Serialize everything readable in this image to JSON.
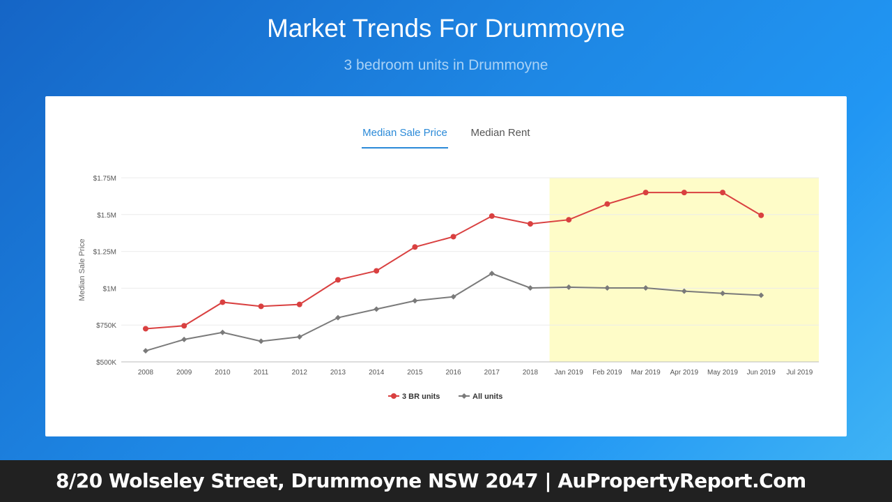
{
  "header": {
    "title": "Market Trends For Drummoyne",
    "subtitle": "3 bedroom units in Drummoyne"
  },
  "tabs": [
    {
      "label": "Median Sale Price",
      "active": true
    },
    {
      "label": "Median Rent",
      "active": false
    }
  ],
  "colors": {
    "series_3br": "#d94040",
    "series_all": "#7a7a7a",
    "highlight": "#fefcc8",
    "tab_active": "#2b8ad8"
  },
  "chart_data": {
    "type": "line",
    "title": "",
    "xlabel": "",
    "ylabel": "Median Sale Price",
    "ylim": [
      500000,
      1750000
    ],
    "y_ticks": [
      {
        "value": 500000,
        "label": "$500K"
      },
      {
        "value": 750000,
        "label": "$750K"
      },
      {
        "value": 1000000,
        "label": "$1M"
      },
      {
        "value": 1250000,
        "label": "$1.25M"
      },
      {
        "value": 1500000,
        "label": "$1.5M"
      },
      {
        "value": 1750000,
        "label": "$1.75M"
      }
    ],
    "categories": [
      "2008",
      "2009",
      "2010",
      "2011",
      "2012",
      "2013",
      "2014",
      "2015",
      "2016",
      "2017",
      "2018",
      "Jan 2019",
      "Feb 2019",
      "Mar 2019",
      "Apr 2019",
      "May 2019",
      "Jun 2019",
      "Jul 2019"
    ],
    "highlight_range": [
      "Jan 2019",
      "Jul 2019"
    ],
    "grid": true,
    "legend_position": "bottom",
    "series": [
      {
        "name": "3 BR units",
        "marker": "circle",
        "values": [
          725000,
          745000,
          905000,
          877000,
          890000,
          1057000,
          1118000,
          1280000,
          1350000,
          1490000,
          1437000,
          1465000,
          1572000,
          1650000,
          1650000,
          1650000,
          1495000,
          null
        ]
      },
      {
        "name": "All units",
        "marker": "diamond",
        "values": [
          575000,
          652000,
          700000,
          640000,
          670000,
          800000,
          858000,
          915000,
          942000,
          1100000,
          1002000,
          1007000,
          1002000,
          1002000,
          980000,
          965000,
          952000,
          null
        ]
      }
    ]
  },
  "footer": {
    "text": "8/20 Wolseley Street, Drummoyne NSW 2047 | AuPropertyReport.Com"
  }
}
